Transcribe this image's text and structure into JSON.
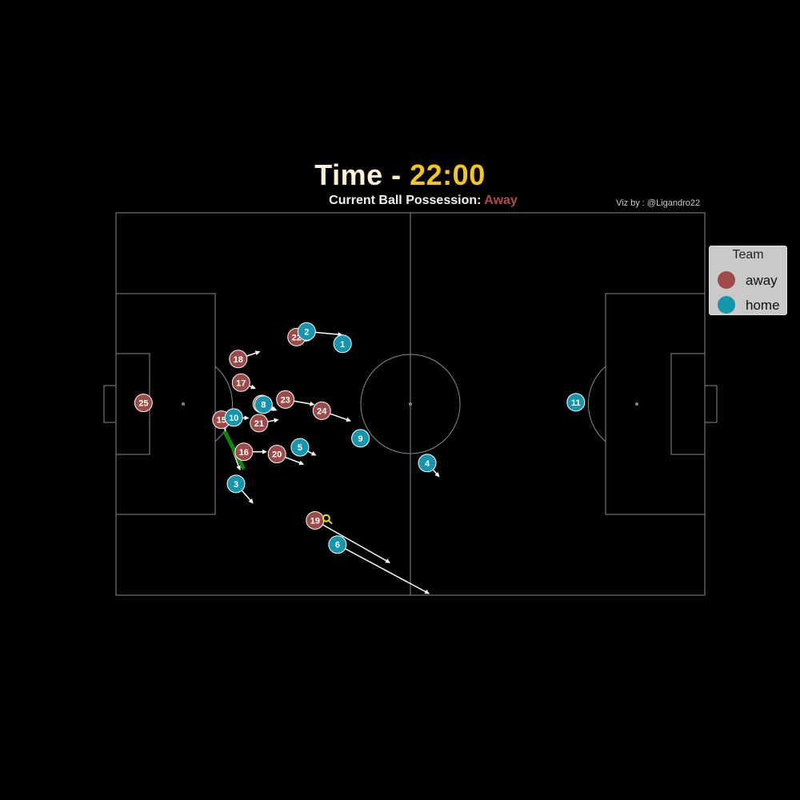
{
  "header": {
    "title_prefix": "Time - ",
    "time": "22:00",
    "possession_label": "Current Ball Possession: ",
    "possession_value": "Away",
    "credit": "Viz by : @Ligandro22"
  },
  "legend": {
    "title": "Team",
    "items": [
      {
        "label": "away",
        "color": "#9e4a49"
      },
      {
        "label": "home",
        "color": "#1596ad"
      }
    ]
  },
  "colors": {
    "away": "#9e4a49",
    "home": "#1596ad",
    "pitch_lines": "#8a8a8a",
    "ball": "#f0e000",
    "ball_path": "#0a8a0a",
    "arrows": "#ffffff"
  },
  "chart_data": {
    "type": "scatter",
    "pitch": {
      "length": 105,
      "width": 68
    },
    "players": [
      {
        "team": "away",
        "number": "25",
        "x": 4.9,
        "y": 34.2,
        "dx": 0,
        "dy": 0
      },
      {
        "team": "away",
        "number": "15",
        "x": 18.8,
        "y": 31.2,
        "dx": 3.3,
        "dy": -8.9
      },
      {
        "team": "away",
        "number": "16",
        "x": 22.8,
        "y": 25.5,
        "dx": 4.0,
        "dy": 0
      },
      {
        "team": "away",
        "number": "20",
        "x": 28.7,
        "y": 25.1,
        "dx": 4.7,
        "dy": -1.8
      },
      {
        "team": "away",
        "number": "21",
        "x": 25.5,
        "y": 30.6,
        "dx": 3.4,
        "dy": 0.6
      },
      {
        "team": "away",
        "number": "17",
        "x": 22.3,
        "y": 37.8,
        "dx": 2.5,
        "dy": -1.0
      },
      {
        "team": "away",
        "number": "18",
        "x": 21.8,
        "y": 42.0,
        "dx": 3.8,
        "dy": 1.3
      },
      {
        "team": "away",
        "number": "22",
        "x": 32.2,
        "y": 45.9,
        "dx": 2.3,
        "dy": -0.6
      },
      {
        "team": "away",
        "number": "23",
        "x": 30.2,
        "y": 34.8,
        "dx": 5.1,
        "dy": -0.9
      },
      {
        "team": "away",
        "number": "24",
        "x": 36.7,
        "y": 32.8,
        "dx": 5.1,
        "dy": -1.8
      },
      {
        "team": "away",
        "number": "7",
        "x": 26.0,
        "y": 34.0,
        "dx": 2.4,
        "dy": -1.1
      },
      {
        "team": "away",
        "number": "19",
        "x": 35.5,
        "y": 13.3,
        "dx": 13.3,
        "dy": -7.5
      },
      {
        "team": "home",
        "number": "1",
        "x": 40.4,
        "y": 44.7,
        "dx": 0,
        "dy": 0
      },
      {
        "team": "home",
        "number": "2",
        "x": 34.0,
        "y": 46.9,
        "dx": 6.3,
        "dy": -0.6
      },
      {
        "team": "home",
        "number": "10",
        "x": 21.0,
        "y": 31.6,
        "dx": 2.6,
        "dy": -0.1
      },
      {
        "team": "home",
        "number": "8",
        "x": 26.3,
        "y": 33.9,
        "dx": 2.3,
        "dy": -1.0
      },
      {
        "team": "home",
        "number": "5",
        "x": 32.8,
        "y": 26.3,
        "dx": 2.8,
        "dy": -1.4
      },
      {
        "team": "home",
        "number": "9",
        "x": 43.6,
        "y": 27.9,
        "dx": 0,
        "dy": 0
      },
      {
        "team": "home",
        "number": "4",
        "x": 55.5,
        "y": 23.5,
        "dx": 2.1,
        "dy": -2.4
      },
      {
        "team": "home",
        "number": "3",
        "x": 21.4,
        "y": 19.8,
        "dx": 3.0,
        "dy": -3.4
      },
      {
        "team": "home",
        "number": "6",
        "x": 39.5,
        "y": 9.0,
        "dx": 16.3,
        "dy": -8.7
      },
      {
        "team": "home",
        "number": "11",
        "x": 82.0,
        "y": 34.3,
        "dx": 0,
        "dy": 0
      }
    ],
    "ball": {
      "x": 37.5,
      "y": 13.7
    },
    "ball_path": [
      {
        "x": 19.4,
        "y": 29.1
      },
      {
        "x": 22.8,
        "y": 22.4
      }
    ]
  }
}
